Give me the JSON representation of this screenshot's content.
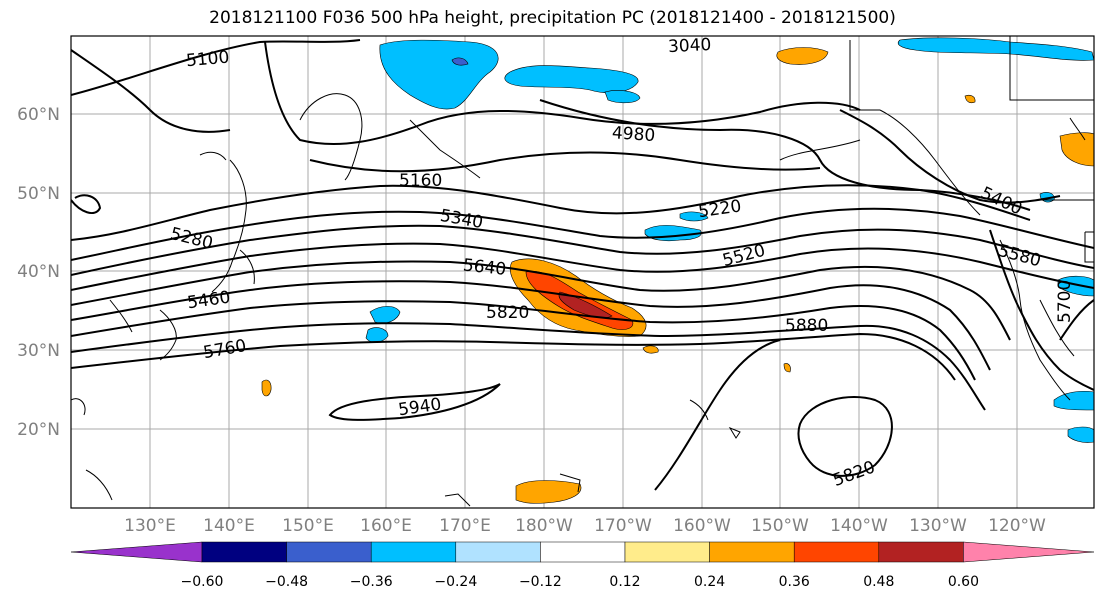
{
  "title": "2018121100 F036 500 hPa height, precipitation PC (2018121400 - 2018121500)",
  "lat_labels": [
    "60°N",
    "50°N",
    "40°N",
    "30°N",
    "20°N"
  ],
  "lon_labels": [
    "130°E",
    "140°E",
    "150°E",
    "160°E",
    "170°E",
    "180°W",
    "170°W",
    "160°W",
    "150°W",
    "140°W",
    "130°W",
    "120°W"
  ],
  "contour_labels": [
    "5100",
    "3040",
    "4980",
    "5160",
    "5220",
    "5400",
    "5280",
    "5340",
    "5520",
    "5580",
    "5640",
    "5460",
    "5820",
    "5880",
    "5760",
    "5700",
    "5940",
    "5820"
  ],
  "colorbar": {
    "ticks": [
      "−0.60",
      "−0.48",
      "−0.36",
      "−0.24",
      "−0.12",
      "0.12",
      "0.24",
      "0.36",
      "0.48",
      "0.60"
    ],
    "colors": [
      "#9932CC",
      "#000080",
      "#3A5FCD",
      "#00BFFF",
      "#B0E2FF",
      "#FFFFFF",
      "#FFEC8B",
      "#FFA500",
      "#FF4500",
      "#B22222",
      "#FF82AB"
    ]
  }
}
